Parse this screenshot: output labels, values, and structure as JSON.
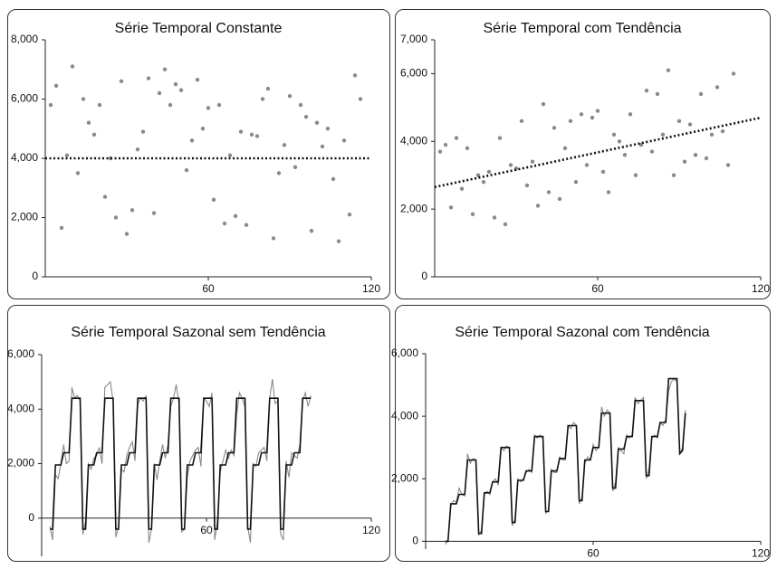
{
  "chart_data": [
    {
      "type": "scatter",
      "title": "Série Temporal Constante",
      "color": "#8a8a8a",
      "x": [
        2,
        4,
        6,
        8,
        10,
        12,
        14,
        16,
        18,
        20,
        22,
        24,
        26,
        28,
        30,
        32,
        34,
        36,
        38,
        40,
        42,
        44,
        46,
        48,
        50,
        52,
        54,
        56,
        58,
        60,
        62,
        64,
        66,
        68,
        70,
        72,
        74,
        76,
        78,
        80,
        82,
        84,
        86,
        88,
        90,
        92,
        94,
        96,
        98,
        100,
        102,
        104,
        106,
        108,
        110,
        112,
        114,
        116
      ],
      "values": [
        5800,
        6450,
        1650,
        4100,
        7100,
        3500,
        6000,
        5200,
        4800,
        5800,
        2700,
        4000,
        2000,
        6600,
        1450,
        2250,
        4300,
        4900,
        6700,
        2150,
        6200,
        7000,
        5800,
        6500,
        6300,
        3600,
        4600,
        6650,
        5000,
        5700,
        2600,
        5800,
        1800,
        4100,
        2050,
        4900,
        1750,
        4800,
        4750,
        6000,
        6350,
        1300,
        3500,
        4450,
        6100,
        3700,
        5800,
        5400,
        1550,
        5200,
        4400,
        5000,
        3300,
        1200,
        4600,
        2100,
        6800,
        6000
      ],
      "trend": {
        "x": [
          0,
          120
        ],
        "values": [
          4000,
          4000
        ],
        "color": "#111111"
      },
      "xlim": [
        0,
        120
      ],
      "xticks": [
        60,
        120
      ],
      "ylim": [
        0,
        8000
      ],
      "yticks": [
        0,
        {
          "value": 2000,
          "label": "2,000"
        },
        {
          "value": 4000,
          "label": "4,000"
        },
        {
          "value": 6000,
          "label": "6,000"
        },
        {
          "value": 8000,
          "label": "8,000"
        }
      ]
    },
    {
      "type": "scatter",
      "title": "Série Temporal com Tendência",
      "color": "#8a8a8a",
      "x": [
        2,
        4,
        6,
        8,
        10,
        12,
        14,
        16,
        18,
        20,
        22,
        24,
        26,
        28,
        30,
        32,
        34,
        36,
        38,
        40,
        42,
        44,
        46,
        48,
        50,
        52,
        54,
        56,
        58,
        60,
        62,
        64,
        66,
        68,
        70,
        72,
        74,
        76,
        78,
        80,
        82,
        84,
        86,
        88,
        90,
        92,
        94,
        96,
        98,
        100,
        102,
        104,
        106,
        108,
        110
      ],
      "values": [
        3700,
        3900,
        2050,
        4100,
        2600,
        3800,
        1850,
        3000,
        2800,
        3100,
        1750,
        4100,
        1550,
        3300,
        3200,
        4600,
        2700,
        3400,
        2100,
        5100,
        2500,
        4400,
        2300,
        3800,
        4600,
        2800,
        4800,
        3300,
        4700,
        4900,
        3100,
        2500,
        4200,
        4000,
        3600,
        4800,
        3000,
        3900,
        5500,
        3700,
        5400,
        4200,
        6100,
        3000,
        4600,
        3400,
        4500,
        3600,
        5400,
        3500,
        4200,
        5600,
        4300,
        3300,
        6000
      ],
      "trend": {
        "x": [
          0,
          120
        ],
        "values": [
          2650,
          4700
        ],
        "color": "#111111"
      },
      "xlim": [
        0,
        120
      ],
      "xticks": [
        60,
        120
      ],
      "ylim": [
        0,
        7000
      ],
      "yticks": [
        0,
        {
          "value": 2000,
          "label": "2,000"
        },
        {
          "value": 4000,
          "label": "4,000"
        },
        {
          "value": 6000,
          "label": "6,000"
        },
        {
          "value": 7000,
          "label": "7,000"
        }
      ]
    },
    {
      "type": "line",
      "title": "Série Temporal Sazonal sem Tendência",
      "x": [
        3,
        4,
        5,
        6,
        7,
        8,
        9,
        10,
        11,
        12,
        13,
        14,
        15,
        16,
        17,
        18,
        19,
        20,
        21,
        22,
        23,
        24,
        25,
        26,
        27,
        28,
        29,
        30,
        31,
        32,
        33,
        34,
        35,
        36,
        37,
        38,
        39,
        40,
        41,
        42,
        43,
        44,
        45,
        46,
        47,
        48,
        49,
        50,
        51,
        52,
        53,
        54,
        55,
        56,
        57,
        58,
        59,
        60,
        61,
        62,
        63,
        64,
        65,
        66,
        67,
        68,
        69,
        70,
        71,
        72,
        73,
        74,
        75,
        76,
        77,
        78,
        79,
        80,
        81,
        82,
        83,
        84,
        85,
        86,
        87,
        88,
        89,
        90,
        91,
        92,
        93,
        94,
        95,
        96,
        97,
        98
      ],
      "series": [
        {
          "color": "#8a8a8a",
          "values": [
            -300,
            -800,
            1600,
            1450,
            2000,
            2700,
            2000,
            2100,
            4800,
            4400,
            4500,
            4300,
            -600,
            -100,
            2000,
            1800,
            2200,
            2300,
            2600,
            2000,
            4800,
            4900,
            5000,
            4300,
            -700,
            -300,
            1800,
            1700,
            2300,
            2600,
            2800,
            2100,
            4200,
            4400,
            4300,
            4500,
            -900,
            -400,
            2000,
            1400,
            2100,
            2700,
            2200,
            2700,
            4100,
            4400,
            4900,
            4200,
            -500,
            -400,
            1500,
            2100,
            2300,
            2500,
            2600,
            1900,
            4400,
            4300,
            4100,
            4600,
            -800,
            -100,
            1700,
            2100,
            2500,
            2200,
            2500,
            2300,
            3800,
            4600,
            4400,
            4100,
            -300,
            -900,
            2000,
            1900,
            2400,
            2500,
            2600,
            2100,
            4400,
            5100,
            4200,
            4300,
            -600,
            -800,
            2100,
            1500,
            2400,
            2300,
            2200,
            2700,
            4300,
            4600,
            4100,
            4500
          ]
        },
        {
          "color": "#111111",
          "values": [
            -400,
            -400,
            1950,
            1950,
            1950,
            2400,
            2400,
            2400,
            4400,
            4400,
            4400,
            4400,
            -400,
            -400,
            1950,
            1950,
            1950,
            2400,
            2400,
            2400,
            4400,
            4400,
            4400,
            4400,
            -400,
            -400,
            1950,
            1950,
            1950,
            2400,
            2400,
            2400,
            4400,
            4400,
            4400,
            4400,
            -400,
            -400,
            1950,
            1950,
            1950,
            2400,
            2400,
            2400,
            4400,
            4400,
            4400,
            4400,
            -400,
            -400,
            1950,
            1950,
            1950,
            2400,
            2400,
            2400,
            4400,
            4400,
            4400,
            4400,
            -400,
            -400,
            1950,
            1950,
            1950,
            2400,
            2400,
            2400,
            4400,
            4400,
            4400,
            4400,
            -400,
            -400,
            1950,
            1950,
            1950,
            2400,
            2400,
            2400,
            4400,
            4400,
            4400,
            4400,
            -400,
            -400,
            1950,
            1950,
            1950,
            2400,
            2400,
            2400,
            4400,
            4400,
            4400,
            4400
          ]
        }
      ],
      "xlim": [
        0,
        120
      ],
      "xticks": [
        60,
        120
      ],
      "ylim": [
        -1400,
        6000
      ],
      "yticks": [
        0,
        {
          "value": 2000,
          "label": "2,000"
        },
        {
          "value": 4000,
          "label": "4,000"
        },
        {
          "value": 6000,
          "label": "6,000"
        }
      ]
    },
    {
      "type": "line",
      "title": "Série Temporal Sazonal com Tendência",
      "x": [
        7,
        8,
        9,
        10,
        11,
        12,
        13,
        14,
        15,
        16,
        17,
        18,
        19,
        20,
        21,
        22,
        23,
        24,
        25,
        26,
        27,
        28,
        29,
        30,
        31,
        32,
        33,
        34,
        35,
        36,
        37,
        38,
        39,
        40,
        41,
        42,
        43,
        44,
        45,
        46,
        47,
        48,
        49,
        50,
        51,
        52,
        53,
        54,
        55,
        56,
        57,
        58,
        59,
        60,
        61,
        62,
        63,
        64,
        65,
        66,
        67,
        68,
        69,
        70,
        71,
        72,
        73,
        74,
        75,
        76,
        77,
        78,
        79,
        80,
        81,
        82,
        83,
        84,
        85,
        86,
        87,
        88,
        89,
        90,
        91,
        92,
        93
      ],
      "series": [
        {
          "color": "#8a8a8a",
          "values": [
            -100,
            50,
            1150,
            1300,
            1250,
            1700,
            1500,
            1450,
            2800,
            2500,
            2650,
            2600,
            200,
            350,
            1500,
            1600,
            1500,
            1900,
            2000,
            1800,
            3000,
            2900,
            3050,
            3000,
            500,
            700,
            2000,
            1900,
            2000,
            2200,
            2300,
            2200,
            3400,
            3300,
            3400,
            3300,
            900,
            1000,
            2300,
            2200,
            2200,
            2700,
            2600,
            2600,
            3700,
            3600,
            3800,
            3700,
            1200,
            1400,
            2500,
            2700,
            2600,
            3100,
            2900,
            3000,
            4300,
            4000,
            4200,
            4100,
            1600,
            1900,
            3000,
            2900,
            2800,
            3400,
            3300,
            3400,
            4600,
            4400,
            4500,
            4600,
            2000,
            2300,
            3300,
            3400,
            3300,
            3800,
            3700,
            3900,
            4800,
            5100,
            5200,
            5100,
            2800,
            3000,
            4200
          ]
        },
        {
          "color": "#111111",
          "values": [
            0,
            0,
            1200,
            1200,
            1200,
            1500,
            1500,
            1500,
            2600,
            2600,
            2600,
            2600,
            250,
            250,
            1550,
            1550,
            1550,
            1900,
            1900,
            1900,
            3000,
            3000,
            3000,
            3000,
            600,
            600,
            1950,
            1950,
            1950,
            2250,
            2250,
            2250,
            3350,
            3350,
            3350,
            3350,
            950,
            950,
            2250,
            2250,
            2250,
            2650,
            2650,
            2650,
            3700,
            3700,
            3700,
            3700,
            1300,
            1300,
            2600,
            2600,
            2600,
            3000,
            3000,
            3000,
            4100,
            4100,
            4100,
            4100,
            1700,
            1700,
            2950,
            2950,
            2950,
            3350,
            3350,
            3350,
            4500,
            4500,
            4500,
            4500,
            2100,
            2100,
            3350,
            3350,
            3350,
            3800,
            3800,
            3800,
            5200,
            5200,
            5200,
            5200,
            2800,
            2900,
            4100
          ]
        }
      ],
      "xlim": [
        0,
        120
      ],
      "xticks": [
        60,
        120
      ],
      "ylim": [
        -250,
        6000
      ],
      "yticks": [
        0,
        {
          "value": 2000,
          "label": "2,000"
        },
        {
          "value": 4000,
          "label": "4,000"
        },
        {
          "value": 6000,
          "label": "6,000"
        }
      ]
    }
  ]
}
